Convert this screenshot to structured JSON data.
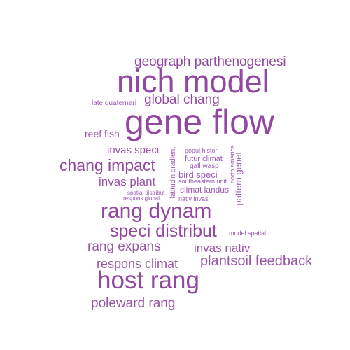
{
  "cloud": {
    "color": "#9b55a8",
    "words": {
      "gene_flow": "gene flow",
      "nich_model": "nich model",
      "host_rang": "host rang",
      "rang_dynam": "rang dynam",
      "speci_distribut": "speci distribut",
      "chang_impact": "chang impact",
      "geograph_parthenogenesi": "geograph parthenogenesi",
      "global_chang": "global chang",
      "plantsoil_feedback": "plantsoil feedback",
      "poleward_rang": "poleward rang",
      "rang_expans": "rang expans",
      "respons_climat": "respons climat",
      "invas_plant": "invas plant",
      "invas_nativ": "invas nativ",
      "invas_speci": "invas speci",
      "reef_fish": "reef fish",
      "late_quaternari": "late quaternari",
      "popul_histori": "popul histori",
      "futur_climat": "futur climat",
      "gall_wasp": "gall wasp",
      "bird_speci": "bird speci",
      "southeastern_unit": "southeastern unit",
      "climat_landus": "climat landus",
      "nativ_invas": "nativ invas",
      "spatial_distribut": "spatial distribut",
      "respons_global": "respons global",
      "model_spatial": "model spatial",
      "latitudin_gradient": "latitudin gradient",
      "north_america": "north america",
      "pattern_genet": "pattern genet"
    }
  }
}
